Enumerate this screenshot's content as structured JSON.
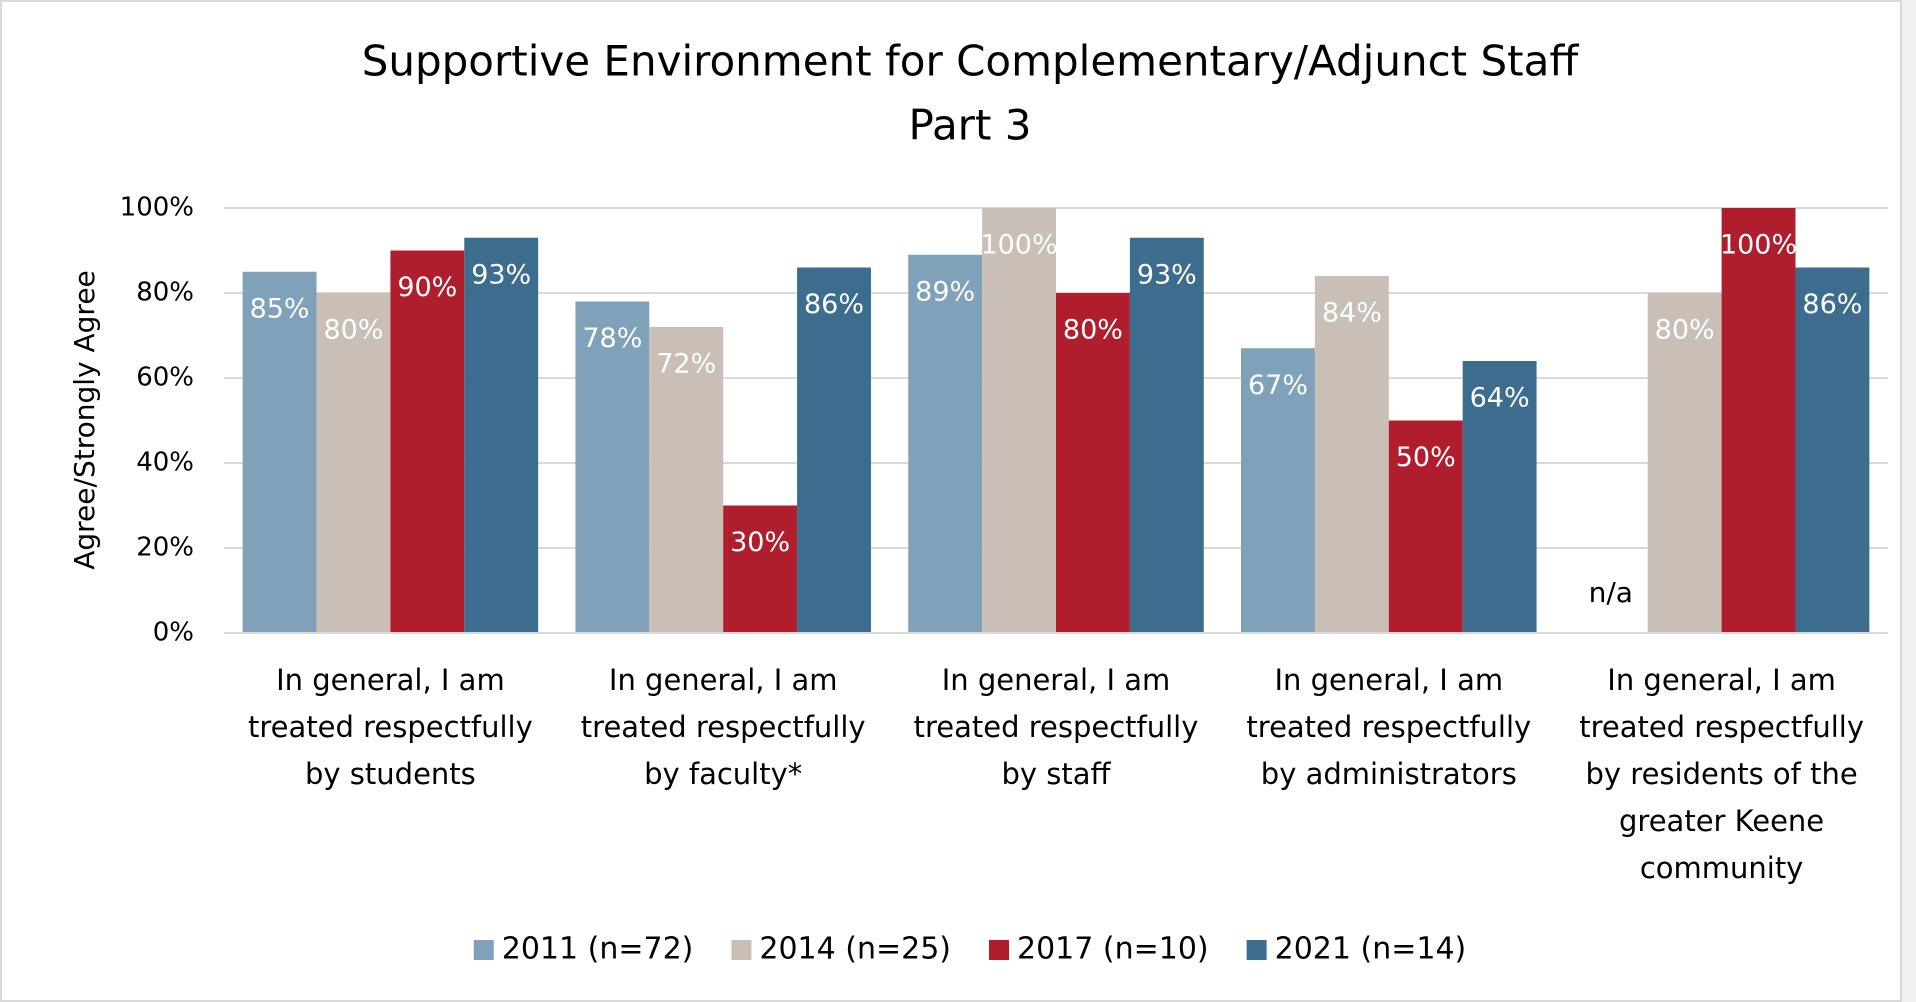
{
  "chart_data": {
    "type": "bar",
    "title": [
      "Supportive Environment for Complementary/Adjunct  Staff",
      "Part 3"
    ],
    "y_label": "Agree/Strongly Agree",
    "categories": [
      [
        "In general, I am",
        "treated respectfully",
        "by students"
      ],
      [
        "In general, I am",
        "treated respectfully",
        "by faculty*"
      ],
      [
        "In general, I am",
        "treated respectfully",
        "by staff"
      ],
      [
        "In general, I am",
        "treated respectfully",
        "by administrators"
      ],
      [
        "In general, I am",
        "treated respectfully",
        "by residents of the",
        "greater Keene",
        "community"
      ]
    ],
    "series": [
      {
        "name": "2011 (n=72)",
        "color": "#7fa1b9",
        "label_color": "#ffffff",
        "values": [
          85,
          78,
          89,
          67,
          null
        ],
        "value_labels": [
          "85%",
          "78%",
          "89%",
          "67%",
          null
        ]
      },
      {
        "name": "2014 (n=25)",
        "color": "#c9bfb6",
        "label_color": "#ffffff",
        "values": [
          80,
          72,
          100,
          84,
          80
        ],
        "value_labels": [
          "80%",
          "72%",
          "100%",
          "84%",
          "80%"
        ]
      },
      {
        "name": "2017 (n=10)",
        "color": "#b01e2d",
        "label_color": "#ffffff",
        "values": [
          90,
          30,
          80,
          50,
          100
        ],
        "value_labels": [
          "90%",
          "30%",
          "80%",
          "50%",
          "100%"
        ]
      },
      {
        "name": "2021 (n=14)",
        "color": "#3c6d8f",
        "label_color": "#ffffff",
        "values": [
          93,
          86,
          93,
          64,
          86
        ],
        "value_labels": [
          "93%",
          "86%",
          "93%",
          "64%",
          "86%"
        ]
      }
    ],
    "missing_label": "n/a",
    "ylim": [
      0,
      100
    ],
    "yticks": [
      {
        "value": 0,
        "label": "0%"
      },
      {
        "value": 20,
        "label": "20%"
      },
      {
        "value": 40,
        "label": "40%"
      },
      {
        "value": 60,
        "label": "60%"
      },
      {
        "value": 80,
        "label": "80%"
      },
      {
        "value": 100,
        "label": "100%"
      }
    ],
    "grid": true,
    "legend": "bottom"
  }
}
